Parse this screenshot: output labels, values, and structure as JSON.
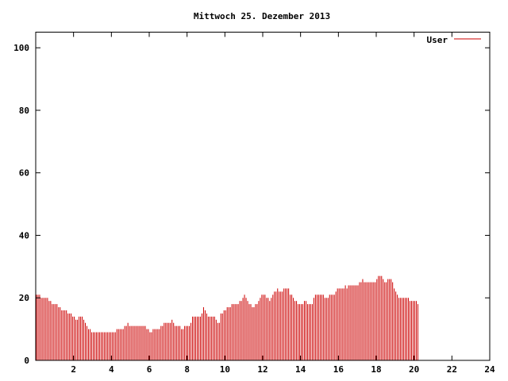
{
  "chart_data": {
    "type": "bar",
    "title": "Mittwoch 25. Dezember 2013",
    "xlabel": "",
    "ylabel": "",
    "xlim": [
      0,
      24
    ],
    "ylim": [
      0,
      105
    ],
    "x_ticks": [
      2,
      4,
      6,
      8,
      10,
      12,
      14,
      16,
      18,
      20,
      22,
      24
    ],
    "x_tick_labels": [
      "2",
      "4",
      "6",
      "8",
      "10",
      "12",
      "14",
      "16",
      "18",
      "20",
      "22",
      "24"
    ],
    "y_ticks": [
      0,
      20,
      40,
      60,
      80,
      100
    ],
    "y_tick_labels": [
      "0",
      "20",
      "40",
      "60",
      "80",
      "100"
    ],
    "grid": false,
    "legend_position": "top-right",
    "series": [
      {
        "name": "User",
        "color": "#cc0000",
        "sample_interval_hours": 0.0833,
        "values": [
          21,
          21,
          21,
          20,
          20,
          20,
          20,
          20,
          19,
          19,
          18,
          18,
          18,
          18,
          17,
          17,
          16,
          16,
          16,
          16,
          15,
          15,
          15,
          14,
          14,
          13,
          13,
          14,
          14,
          14,
          13,
          12,
          11,
          10,
          10,
          9,
          9,
          9,
          9,
          9,
          9,
          9,
          9,
          9,
          9,
          9,
          9,
          9,
          9,
          9,
          9,
          10,
          10,
          10,
          10,
          10,
          11,
          11,
          12,
          11,
          11,
          11,
          11,
          11,
          11,
          11,
          11,
          11,
          11,
          11,
          10,
          10,
          9,
          9,
          10,
          10,
          10,
          10,
          10,
          11,
          11,
          12,
          12,
          12,
          12,
          12,
          13,
          12,
          11,
          11,
          11,
          11,
          10,
          10,
          11,
          11,
          11,
          11,
          12,
          14,
          14,
          14,
          14,
          14,
          14,
          15,
          17,
          16,
          15,
          14,
          14,
          14,
          14,
          14,
          13,
          12,
          12,
          15,
          15,
          16,
          16,
          17,
          17,
          17,
          18,
          18,
          18,
          18,
          18,
          19,
          19,
          20,
          21,
          20,
          19,
          18,
          18,
          17,
          17,
          18,
          18,
          19,
          20,
          21,
          21,
          21,
          20,
          20,
          19,
          20,
          21,
          22,
          22,
          23,
          22,
          22,
          22,
          23,
          23,
          23,
          23,
          21,
          21,
          20,
          19,
          19,
          18,
          18,
          18,
          18,
          19,
          19,
          18,
          18,
          18,
          18,
          20,
          21,
          21,
          21,
          21,
          21,
          21,
          20,
          20,
          20,
          21,
          21,
          21,
          21,
          22,
          23,
          23,
          23,
          23,
          23,
          24,
          23,
          24,
          24,
          24,
          24,
          24,
          24,
          24,
          25,
          25,
          26,
          25,
          25,
          25,
          25,
          25,
          25,
          25,
          25,
          26,
          27,
          27,
          27,
          26,
          25,
          25,
          26,
          26,
          26,
          25,
          23,
          22,
          21,
          20,
          20,
          20,
          20,
          20,
          20,
          20,
          19,
          19,
          19,
          19,
          19,
          18
        ]
      }
    ]
  }
}
